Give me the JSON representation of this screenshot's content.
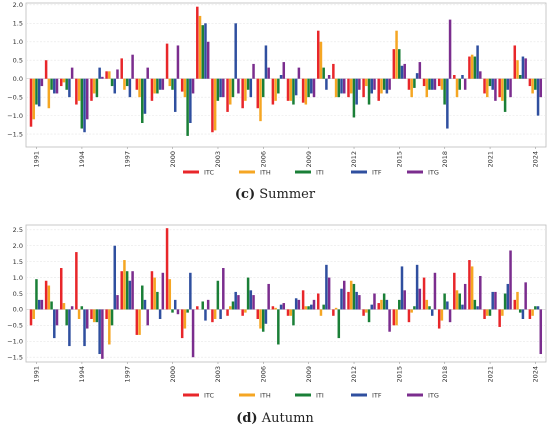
{
  "colors": {
    "ITC": "#e8262a",
    "ITH": "#f5a623",
    "ITI": "#1a7f37",
    "ITF": "#2f4f9f",
    "ITG": "#7b2d8e"
  },
  "chart_data": [
    {
      "type": "bar",
      "caption_letter": "(c)",
      "caption_text": " Summer",
      "ylim": [
        -1.85,
        2.05
      ],
      "yticks": [
        -1.5,
        -1.0,
        -0.5,
        0.0,
        0.5,
        1.0,
        1.5,
        2.0
      ],
      "ytick_labels": [
        "−1.5",
        "−1.0",
        "−0.5",
        "0.0",
        "0.5",
        "1.0",
        "1.5",
        "2.0"
      ],
      "categories": [
        1991,
        1992,
        1993,
        1994,
        1995,
        1996,
        1997,
        1998,
        1999,
        2000,
        2001,
        2002,
        2003,
        2004,
        2005,
        2006,
        2007,
        2008,
        2009,
        2010,
        2011,
        2012,
        2013,
        2014,
        2015,
        2016,
        2017,
        2018,
        2019,
        2020,
        2021,
        2022,
        2023,
        2024
      ],
      "xtick_labels": [
        "1991",
        "",
        "",
        "1994",
        "",
        "",
        "1997",
        "",
        "",
        "2000",
        "",
        "",
        "2003",
        "",
        "",
        "2006",
        "",
        "",
        "2009",
        "",
        "",
        "2012",
        "",
        "",
        "2015",
        "",
        "",
        "2018",
        "",
        "",
        "2021",
        "",
        "",
        "2024"
      ],
      "legend": [
        "ITC",
        "ITH",
        "ITI",
        "ITF",
        "ITG"
      ],
      "series": [
        {
          "name": "ITC",
          "values": [
            -1.3,
            0.5,
            -0.2,
            -0.7,
            -0.6,
            0.2,
            0.55,
            -0.3,
            -0.6,
            0.95,
            -0.35,
            1.95,
            -1.45,
            -0.9,
            -0.8,
            -0.8,
            -0.7,
            -0.6,
            -0.65,
            1.3,
            0.4,
            -0.5,
            -0.5,
            -0.6,
            0.8,
            -0.3,
            -0.2,
            -0.2,
            0.1,
            0.6,
            -0.4,
            -0.5,
            0.9,
            -0.2
          ]
        },
        {
          "name": "ITH",
          "values": [
            -1.1,
            -0.8,
            -0.1,
            -0.6,
            -0.4,
            0.2,
            -0.3,
            -0.5,
            -0.4,
            -0.2,
            -0.5,
            1.7,
            -1.4,
            -0.7,
            -0.6,
            -1.15,
            -0.6,
            -0.6,
            -0.7,
            1.0,
            -0.5,
            -0.4,
            -0.2,
            -0.4,
            1.3,
            -0.5,
            -0.5,
            -0.3,
            -0.5,
            0.65,
            -0.5,
            -0.6,
            0.5,
            -0.4
          ]
        },
        {
          "name": "ITI",
          "values": [
            -0.7,
            -0.3,
            -0.3,
            -1.35,
            -0.5,
            -0.2,
            -0.2,
            -1.2,
            -0.4,
            -0.3,
            -1.55,
            1.45,
            -0.6,
            -0.5,
            -0.3,
            -0.5,
            -0.4,
            -0.7,
            -0.5,
            0.3,
            -0.5,
            -1.05,
            -0.7,
            -0.3,
            0.8,
            -0.25,
            -0.3,
            -0.7,
            -0.3,
            0.6,
            -0.2,
            -0.9,
            0.1,
            -0.3
          ]
        },
        {
          "name": "ITF",
          "values": [
            -0.75,
            -0.4,
            -0.5,
            -1.45,
            0.3,
            -0.4,
            -0.5,
            -0.95,
            -0.3,
            -0.9,
            -1.2,
            1.5,
            -0.5,
            1.5,
            -0.5,
            0.9,
            0.1,
            -0.45,
            -0.4,
            -0.3,
            -0.4,
            -0.7,
            -0.4,
            -0.4,
            0.35,
            0.15,
            -0.3,
            -1.35,
            0.1,
            0.9,
            -0.3,
            -0.3,
            0.6,
            -1.0
          ]
        },
        {
          "name": "ITG",
          "values": [
            -0.2,
            -0.4,
            0.3,
            -1.1,
            0.05,
            0.25,
            0.65,
            0.3,
            -0.3,
            0.9,
            -0.4,
            1.0,
            -0.5,
            -0.4,
            0.4,
            0.3,
            0.45,
            0.3,
            -0.5,
            0.1,
            -0.4,
            -0.3,
            -0.3,
            -0.3,
            0.4,
            0.45,
            -0.3,
            1.6,
            -0.3,
            0.2,
            -0.6,
            -0.5,
            0.55,
            -0.5
          ]
        }
      ]
    },
    {
      "type": "bar",
      "caption_letter": "(d)",
      "caption_text": " Autumn",
      "ylim": [
        -1.65,
        2.65
      ],
      "yticks": [
        -1.5,
        -1.0,
        -0.5,
        0.0,
        0.5,
        1.0,
        1.5,
        2.0,
        2.5
      ],
      "ytick_labels": [
        "−1.5",
        "−1.0",
        "−0.5",
        "0.0",
        "0.5",
        "1.0",
        "1.5",
        "2.0",
        "2.5"
      ],
      "categories": [
        1991,
        1992,
        1993,
        1994,
        1995,
        1996,
        1997,
        1998,
        1999,
        2000,
        2001,
        2002,
        2003,
        2004,
        2005,
        2006,
        2007,
        2008,
        2009,
        2010,
        2011,
        2012,
        2013,
        2014,
        2015,
        2016,
        2017,
        2018,
        2019,
        2020,
        2021,
        2022,
        2023,
        2024
      ],
      "xtick_labels": [
        "1991",
        "",
        "",
        "1994",
        "",
        "",
        "1997",
        "",
        "",
        "2000",
        "",
        "",
        "2003",
        "",
        "",
        "2006",
        "",
        "",
        "2009",
        "",
        "",
        "2012",
        "",
        "",
        "2015",
        "",
        "",
        "2018",
        "",
        "",
        "2021",
        "",
        "",
        "2024"
      ],
      "legend": [
        "ITC",
        "ITH",
        "ITI",
        "ITF",
        "ITG"
      ],
      "series": [
        {
          "name": "ITC",
          "values": [
            -0.5,
            0.9,
            1.3,
            1.8,
            -0.3,
            -0.3,
            1.2,
            -0.8,
            1.2,
            2.55,
            -0.9,
            0.1,
            -0.4,
            -0.2,
            -0.2,
            -0.3,
            0.1,
            -0.2,
            0.6,
            0.5,
            -0.2,
            0.55,
            -0.2,
            0.2,
            -0.5,
            -0.4,
            1.0,
            -0.6,
            1.15,
            1.55,
            -0.3,
            -0.55,
            0.3,
            -0.3
          ]
        },
        {
          "name": "ITH",
          "values": [
            -0.3,
            0.75,
            0.2,
            -0.3,
            -0.4,
            -1.1,
            1.55,
            -0.8,
            1.0,
            0.95,
            -0.6,
            0.0,
            -0.3,
            0.1,
            -0.1,
            -0.6,
            0.05,
            -0.2,
            0.1,
            -0.2,
            0.05,
            0.9,
            -0.1,
            0.3,
            -0.5,
            -0.1,
            0.3,
            -0.35,
            0.6,
            1.35,
            -0.2,
            -0.2,
            0.55,
            -0.2
          ]
        },
        {
          "name": "ITI",
          "values": [
            0.95,
            0.25,
            -0.5,
            0.1,
            -0.4,
            -0.5,
            1.2,
            0.75,
            0.55,
            -0.1,
            -0.1,
            0.25,
            0.9,
            0.25,
            1.0,
            -0.7,
            -1.1,
            -0.5,
            0.1,
            0.15,
            -0.9,
            0.8,
            -0.4,
            0.5,
            0.3,
            0.1,
            0.1,
            0.5,
            0.5,
            0.3,
            -0.2,
            0.5,
            -0.1,
            0.1
          ]
        },
        {
          "name": "ITF",
          "values": [
            0.3,
            -0.9,
            -1.15,
            -1.15,
            -1.4,
            2.0,
            0.9,
            0.3,
            -0.3,
            0.3,
            1.15,
            -0.35,
            -0.3,
            0.55,
            0.6,
            -0.45,
            0.15,
            0.35,
            0.15,
            1.4,
            0.65,
            0.55,
            0.15,
            0.3,
            1.35,
            1.4,
            -0.2,
            0.25,
            0.15,
            0.1,
            0.55,
            0.8,
            -0.3,
            0.1
          ]
        },
        {
          "name": "ITG",
          "values": [
            0.3,
            -0.5,
            0.1,
            -0.6,
            -1.55,
            0.45,
            1.2,
            -0.5,
            1.15,
            -0.15,
            -1.5,
            0.3,
            1.3,
            0.45,
            0.45,
            0.8,
            0.2,
            0.3,
            0.3,
            1.0,
            0.9,
            0.45,
            0.5,
            -0.7,
            0.6,
            0.65,
            1.15,
            -0.4,
            0.8,
            1.05,
            0.55,
            1.85,
            0.85,
            -1.4
          ]
        }
      ]
    }
  ]
}
